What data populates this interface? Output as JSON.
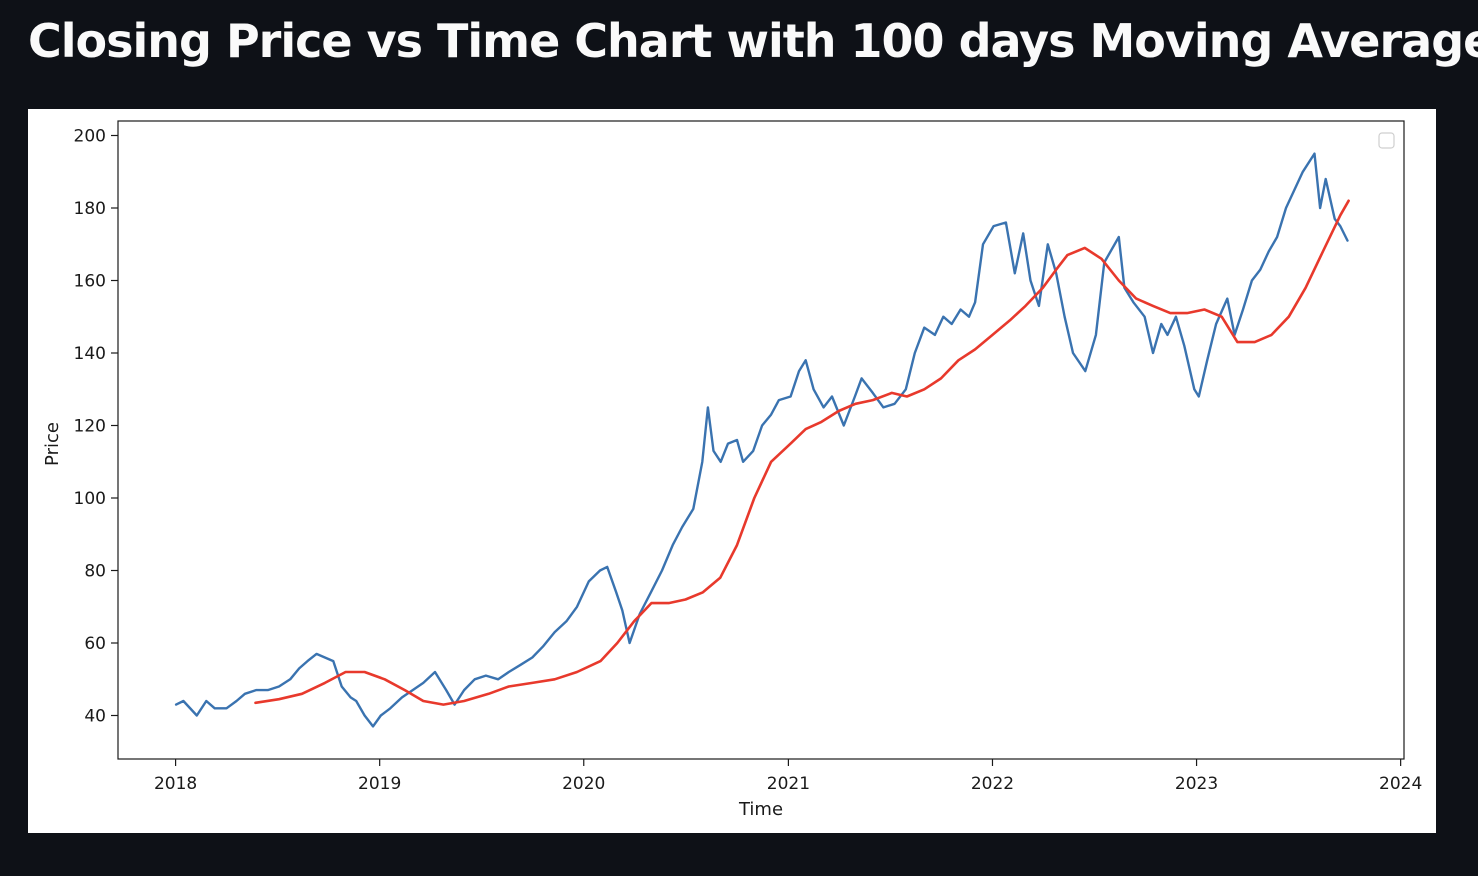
{
  "page": {
    "title": "Closing Price vs Time Chart with 100 days Moving Average"
  },
  "chart_data": {
    "type": "line",
    "title": "",
    "xlabel": "Time",
    "ylabel": "Price",
    "xlim": [
      "2017-09-20",
      "2024-01-07"
    ],
    "ylim": [
      28,
      204
    ],
    "x_ticks": [
      "2018",
      "2019",
      "2020",
      "2021",
      "2022",
      "2023",
      "2024"
    ],
    "y_ticks": [
      40,
      60,
      80,
      100,
      120,
      140,
      160,
      180,
      200
    ],
    "grid": false,
    "legend": {
      "placement": "top-right",
      "entries": []
    },
    "colors": {
      "close": "#3a73b0",
      "ma100": "#e8392c"
    },
    "series": [
      {
        "key": "close",
        "x": [
          "2018-01-02",
          "2018-01-15",
          "2018-02-08",
          "2018-02-25",
          "2018-03-12",
          "2018-04-02",
          "2018-04-20",
          "2018-05-05",
          "2018-05-25",
          "2018-06-15",
          "2018-07-05",
          "2018-07-25",
          "2018-08-10",
          "2018-08-25",
          "2018-09-10",
          "2018-09-25",
          "2018-10-10",
          "2018-10-25",
          "2018-11-10",
          "2018-11-20",
          "2018-12-05",
          "2018-12-20",
          "2019-01-03",
          "2019-01-20",
          "2019-02-10",
          "2019-03-01",
          "2019-03-20",
          "2019-04-10",
          "2019-04-30",
          "2019-05-15",
          "2019-06-01",
          "2019-06-20",
          "2019-07-10",
          "2019-08-01",
          "2019-08-20",
          "2019-09-10",
          "2019-10-01",
          "2019-10-20",
          "2019-11-10",
          "2019-12-01",
          "2019-12-20",
          "2020-01-10",
          "2020-01-30",
          "2020-02-12",
          "2020-02-28",
          "2020-03-10",
          "2020-03-23",
          "2020-04-10",
          "2020-04-30",
          "2020-05-20",
          "2020-06-08",
          "2020-06-25",
          "2020-07-15",
          "2020-07-31",
          "2020-08-10",
          "2020-08-20",
          "2020-09-02",
          "2020-09-15",
          "2020-10-01",
          "2020-10-12",
          "2020-10-30",
          "2020-11-15",
          "2020-12-01",
          "2020-12-15",
          "2021-01-05",
          "2021-01-20",
          "2021-02-01",
          "2021-02-15",
          "2021-03-05",
          "2021-03-20",
          "2021-04-10",
          "2021-04-30",
          "2021-05-12",
          "2021-06-01",
          "2021-06-20",
          "2021-07-10",
          "2021-07-30",
          "2021-08-15",
          "2021-09-01",
          "2021-09-20",
          "2021-10-05",
          "2021-10-20",
          "2021-11-05",
          "2021-11-20",
          "2021-12-01",
          "2021-12-15",
          "2022-01-03",
          "2022-01-25",
          "2022-02-10",
          "2022-02-25",
          "2022-03-10",
          "2022-03-25",
          "2022-04-10",
          "2022-04-25",
          "2022-05-10",
          "2022-05-25",
          "2022-06-16",
          "2022-07-05",
          "2022-07-20",
          "2022-08-15",
          "2022-08-25",
          "2022-09-10",
          "2022-09-30",
          "2022-10-15",
          "2022-10-30",
          "2022-11-10",
          "2022-11-25",
          "2022-12-10",
          "2022-12-28",
          "2023-01-05",
          "2023-01-20",
          "2023-02-05",
          "2023-02-25",
          "2023-03-10",
          "2023-03-25",
          "2023-04-10",
          "2023-04-25",
          "2023-05-10",
          "2023-05-25",
          "2023-06-10",
          "2023-06-25",
          "2023-07-10",
          "2023-07-31",
          "2023-08-10",
          "2023-08-20",
          "2023-09-05",
          "2023-09-15",
          "2023-09-28"
        ],
        "values": [
          43,
          44,
          40,
          44,
          42,
          42,
          44,
          46,
          47,
          47,
          48,
          50,
          53,
          55,
          57,
          56,
          55,
          48,
          45,
          44,
          40,
          37,
          40,
          42,
          45,
          47,
          49,
          52,
          47,
          43,
          47,
          50,
          51,
          50,
          52,
          54,
          56,
          59,
          63,
          66,
          70,
          77,
          80,
          81,
          74,
          69,
          60,
          68,
          74,
          80,
          87,
          92,
          97,
          110,
          125,
          113,
          110,
          115,
          116,
          110,
          113,
          120,
          123,
          127,
          128,
          135,
          138,
          130,
          125,
          128,
          120,
          128,
          133,
          129,
          125,
          126,
          130,
          140,
          147,
          145,
          150,
          148,
          152,
          150,
          154,
          170,
          175,
          176,
          162,
          173,
          160,
          153,
          170,
          162,
          150,
          140,
          135,
          145,
          165,
          172,
          158,
          154,
          150,
          140,
          148,
          145,
          150,
          142,
          130,
          128,
          138,
          148,
          155,
          145,
          152,
          160,
          163,
          168,
          172,
          180,
          185,
          190,
          195,
          180,
          188,
          177,
          175,
          171
        ]
      },
      {
        "key": "ma100",
        "x": [
          "2018-05-24",
          "2018-07-05",
          "2018-08-15",
          "2018-09-25",
          "2018-11-01",
          "2018-12-05",
          "2019-01-10",
          "2019-02-15",
          "2019-03-20",
          "2019-04-25",
          "2019-06-01",
          "2019-07-15",
          "2019-08-20",
          "2019-10-01",
          "2019-11-10",
          "2019-12-20",
          "2020-01-31",
          "2020-03-01",
          "2020-03-31",
          "2020-05-01",
          "2020-06-01",
          "2020-07-01",
          "2020-08-01",
          "2020-09-01",
          "2020-10-01",
          "2020-11-01",
          "2020-12-01",
          "2021-01-05",
          "2021-02-01",
          "2021-03-01",
          "2021-04-01",
          "2021-05-01",
          "2021-06-01",
          "2021-07-05",
          "2021-08-01",
          "2021-09-01",
          "2021-10-01",
          "2021-11-01",
          "2021-12-01",
          "2022-01-01",
          "2022-02-01",
          "2022-03-01",
          "2022-04-01",
          "2022-04-25",
          "2022-05-15",
          "2022-06-15",
          "2022-07-15",
          "2022-08-15",
          "2022-09-15",
          "2022-10-15",
          "2022-11-15",
          "2022-12-15",
          "2023-01-15",
          "2023-02-15",
          "2023-03-15",
          "2023-04-15",
          "2023-05-15",
          "2023-06-15",
          "2023-07-15",
          "2023-08-15",
          "2023-09-15",
          "2023-09-30"
        ],
        "values": [
          43.5,
          44.5,
          46,
          49,
          52,
          52,
          50,
          47,
          44,
          43,
          44,
          46,
          48,
          49,
          50,
          52,
          55,
          60,
          66,
          71,
          71,
          72,
          74,
          78,
          87,
          100,
          110,
          115,
          119,
          121,
          124,
          126,
          127,
          129,
          128,
          130,
          133,
          138,
          141,
          145,
          149,
          153,
          158,
          163,
          167,
          169,
          166,
          160,
          155,
          153,
          151,
          151,
          152,
          150,
          143,
          143,
          145,
          150,
          158,
          168,
          178,
          182
        ]
      }
    ]
  }
}
